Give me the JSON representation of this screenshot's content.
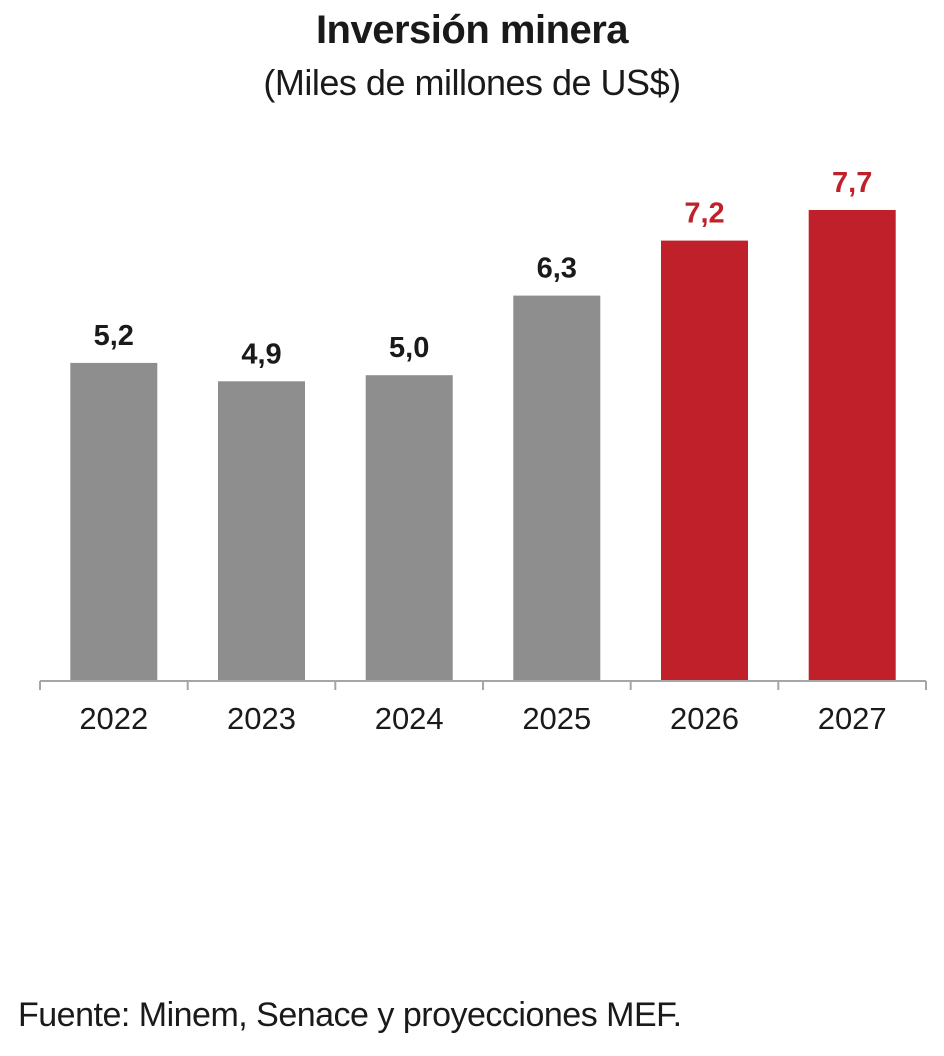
{
  "chart_data": {
    "type": "bar",
    "title": "Inversión minera",
    "subtitle": "(Miles de millones de US$)",
    "xlabel": "",
    "ylabel": "",
    "categories": [
      "2022",
      "2023",
      "2024",
      "2025",
      "2026",
      "2027"
    ],
    "values": [
      5.2,
      4.9,
      5.0,
      6.3,
      7.2,
      7.7
    ],
    "value_labels": [
      "5,2",
      "4,9",
      "5,0",
      "6,3",
      "7,2",
      "7,7"
    ],
    "kind": [
      "observed",
      "observed",
      "observed",
      "observed",
      "projected",
      "projected"
    ],
    "ylim": [
      0,
      7.7
    ],
    "grid": false,
    "legend": "none",
    "colors": {
      "observed_bar": "#8f8e8e",
      "projected_bar": "#c0202a",
      "observed_label": "#1a1a1a",
      "projected_label": "#c0202a",
      "axis": "#a6a6a6"
    }
  },
  "source": "Fuente: Minem, Senace y proyecciones MEF."
}
